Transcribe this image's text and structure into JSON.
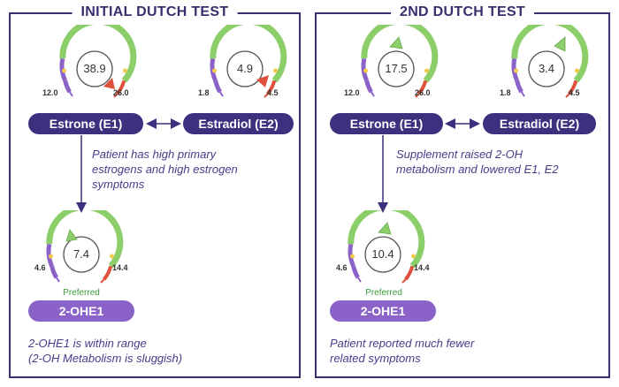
{
  "left_panel": {
    "title": "INITIAL DUTCH TEST",
    "estrone": {
      "value": "38.9",
      "low": "12.0",
      "high": "26.0",
      "label": "Estrone (E1)"
    },
    "estradiol": {
      "value": "4.9",
      "low": "1.8",
      "high": "4.5",
      "label": "Estradiol (E2)"
    },
    "note_top": [
      "Patient has high primary",
      "estrogens and high estrogen",
      "symptoms"
    ],
    "ohe1": {
      "value": "7.4",
      "low": "4.6",
      "high": "14.4",
      "label": "2-OHE1",
      "preferred": "Preferred"
    },
    "note_bottom": [
      "2-OHE1 is within range",
      "(2-OH Metabolism is sluggish)"
    ]
  },
  "right_panel": {
    "title": "2ND DUTCH TEST",
    "estrone": {
      "value": "17.5",
      "low": "12.0",
      "high": "26.0",
      "label": "Estrone (E1)"
    },
    "estradiol": {
      "value": "3.4",
      "low": "1.8",
      "high": "4.5",
      "label": "Estradiol (E2)"
    },
    "note_top": [
      "Supplement raised 2-OH",
      "metabolism and lowered E1, E2"
    ],
    "ohe1": {
      "value": "10.4",
      "low": "4.6",
      "high": "14.4",
      "label": "2-OHE1",
      "preferred": "Preferred"
    },
    "note_bottom": [
      "Patient reported much fewer",
      "related symptoms"
    ]
  },
  "colors": {
    "border": "#3a2e6e",
    "pill_dark": "#3f2f7f",
    "pill_light": "#8b63c8",
    "arc_green": "#8ccf6a",
    "arc_purple": "#8b63c8",
    "arc_red": "#e0503a",
    "marker_red": "#e0503a",
    "marker_green": "#8ccf6a",
    "note_text": "#4a3a8a",
    "preferred_text": "#3a9c3a"
  }
}
